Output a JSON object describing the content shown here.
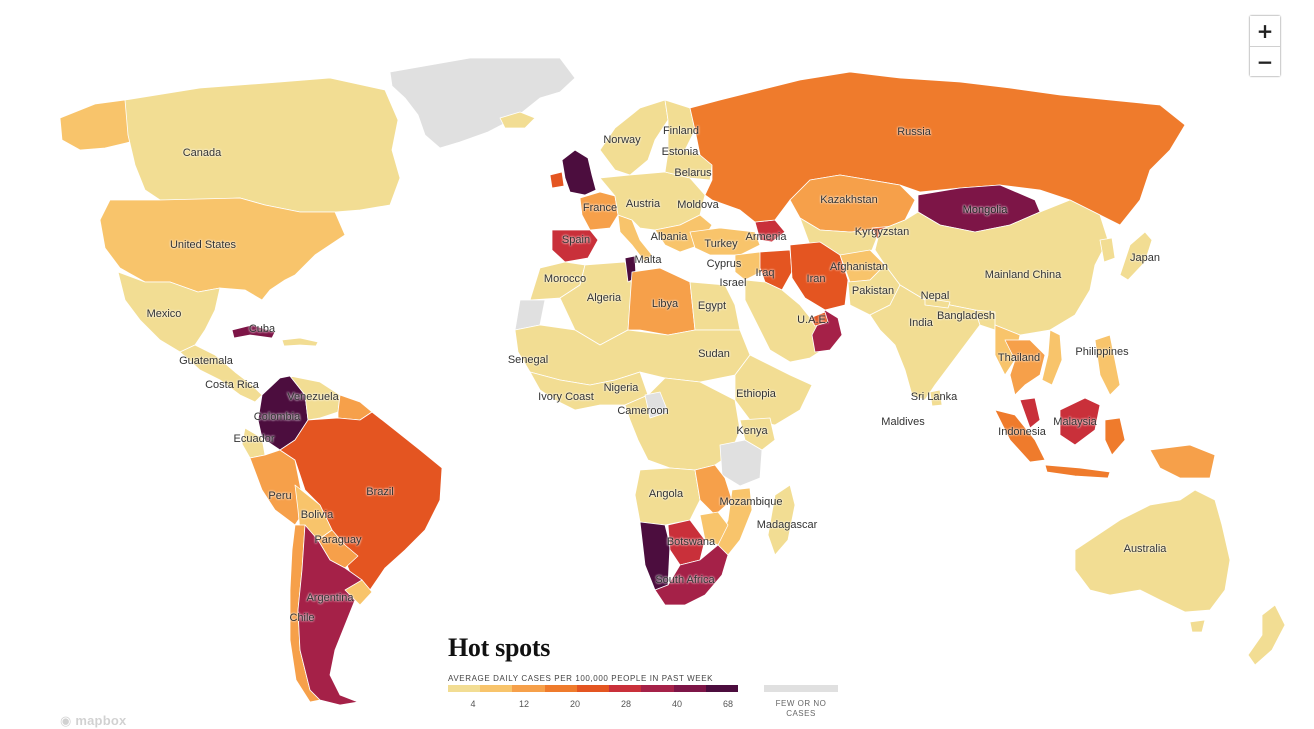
{
  "map": {
    "title": "Hot spots",
    "subtitle": "AVERAGE DAILY CASES PER 100,000 PEOPLE IN PAST WEEK",
    "legend": {
      "colors": [
        "#f2dd93",
        "#f8c46b",
        "#f6a04a",
        "#ef7b2c",
        "#e45521",
        "#c9303a",
        "#a52148",
        "#7d1547",
        "#4c0d3e"
      ],
      "ticks": [
        "4",
        "12",
        "20",
        "28",
        "40",
        "68"
      ],
      "no_data_color": "#e0e0e0",
      "no_data_label": "FEW OR NO CASES"
    },
    "zoom": {
      "in_label": "+",
      "out_label": "−"
    },
    "attribution": "mapbox",
    "labels": [
      "Canada",
      "United States",
      "Mexico",
      "Guatemala",
      "Cuba",
      "Costa Rica",
      "Venezuela",
      "Colombia",
      "Ecuador",
      "Peru",
      "Brazil",
      "Bolivia",
      "Paraguay",
      "Argentina",
      "Chile",
      "Norway",
      "Finland",
      "Estonia",
      "Belarus",
      "France",
      "Austria",
      "Moldova",
      "Spain",
      "Albania",
      "Turkey",
      "Armenia",
      "Malta",
      "Cyprus",
      "Morocco",
      "Algeria",
      "Libya",
      "Israel",
      "Egypt",
      "Iraq",
      "Iran",
      "Afghanistan",
      "Pakistan",
      "Kyrgyzstan",
      "Kazakhstan",
      "Russia",
      "Mongolia",
      "Mainland China",
      "Japan",
      "Nepal",
      "Bangladesh",
      "India",
      "U.A.E.",
      "Sri Lanka",
      "Maldives",
      "Thailand",
      "Philippines",
      "Malaysia",
      "Indonesia",
      "Senegal",
      "Nigeria",
      "Sudan",
      "Ethiopia",
      "Ivory Coast",
      "Cameroon",
      "Kenya",
      "Angola",
      "Mozambique",
      "Madagascar",
      "Botswana",
      "South Africa",
      "Australia"
    ]
  }
}
